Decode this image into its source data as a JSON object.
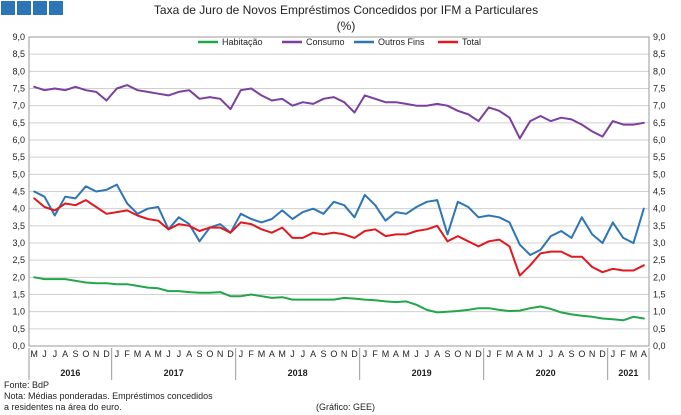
{
  "chart_data": {
    "type": "line",
    "title": "Taxa de Juro de Novos Empréstimos Concedidos por IFM a Particulares",
    "subtitle": "(%)",
    "xlabel": "",
    "ylabel": "",
    "ylim": [
      0,
      9
    ],
    "yticks": [
      "0,0",
      "0,5",
      "1,0",
      "1,5",
      "2,0",
      "2,5",
      "3,0",
      "3,5",
      "4,0",
      "4,5",
      "5,0",
      "5,5",
      "6,0",
      "6,5",
      "7,0",
      "7,5",
      "8,0",
      "8,5",
      "9,0"
    ],
    "grid": true,
    "legend": "top",
    "month_labels": [
      "M",
      "J",
      "J",
      "A",
      "S",
      "O",
      "N",
      "D",
      "J",
      "F",
      "M",
      "A",
      "M",
      "J",
      "J",
      "A",
      "S",
      "O",
      "N",
      "D",
      "J",
      "F",
      "M",
      "A",
      "M",
      "J",
      "J",
      "A",
      "S",
      "O",
      "N",
      "D",
      "J",
      "F",
      "M",
      "A",
      "M",
      "J",
      "J",
      "A",
      "S",
      "O",
      "N",
      "D",
      "J",
      "F",
      "M",
      "A",
      "M",
      "J",
      "J",
      "A",
      "S",
      "O",
      "N",
      "D",
      "J",
      "F",
      "M",
      "A"
    ],
    "years": [
      {
        "label": "2016",
        "start": 0,
        "end": 8
      },
      {
        "label": "2017",
        "start": 8,
        "end": 20
      },
      {
        "label": "2018",
        "start": 20,
        "end": 32
      },
      {
        "label": "2019",
        "start": 32,
        "end": 44
      },
      {
        "label": "2020",
        "start": 44,
        "end": 56
      },
      {
        "label": "2021",
        "start": 56,
        "end": 60
      }
    ],
    "series": [
      {
        "name": "Habitação",
        "color": "#21a64a",
        "values": [
          2.0,
          1.95,
          1.95,
          1.95,
          1.9,
          1.85,
          1.83,
          1.83,
          1.8,
          1.8,
          1.75,
          1.7,
          1.68,
          1.6,
          1.6,
          1.57,
          1.55,
          1.55,
          1.57,
          1.45,
          1.45,
          1.5,
          1.45,
          1.4,
          1.42,
          1.35,
          1.35,
          1.35,
          1.35,
          1.35,
          1.4,
          1.38,
          1.35,
          1.33,
          1.3,
          1.28,
          1.3,
          1.2,
          1.05,
          0.98,
          1.0,
          1.02,
          1.05,
          1.1,
          1.1,
          1.05,
          1.02,
          1.03,
          1.1,
          1.15,
          1.08,
          0.98,
          0.92,
          0.88,
          0.85,
          0.8,
          0.78,
          0.75,
          0.85,
          0.8
        ]
      },
      {
        "name": "Consumo",
        "color": "#7a3fa0",
        "values": [
          7.55,
          7.45,
          7.5,
          7.45,
          7.55,
          7.45,
          7.4,
          7.15,
          7.5,
          7.6,
          7.45,
          7.4,
          7.35,
          7.3,
          7.4,
          7.45,
          7.2,
          7.25,
          7.2,
          6.9,
          7.45,
          7.5,
          7.3,
          7.15,
          7.2,
          7.0,
          7.1,
          7.05,
          7.2,
          7.25,
          7.1,
          6.8,
          7.3,
          7.2,
          7.1,
          7.1,
          7.05,
          7.0,
          7.0,
          7.05,
          7.0,
          6.85,
          6.75,
          6.55,
          6.95,
          6.85,
          6.65,
          6.05,
          6.55,
          6.7,
          6.55,
          6.65,
          6.6,
          6.45,
          6.25,
          6.1,
          6.55,
          6.45,
          6.45,
          6.5
        ]
      },
      {
        "name": "Outros Fins",
        "color": "#2e75b6",
        "values": [
          4.5,
          4.35,
          3.8,
          4.35,
          4.3,
          4.65,
          4.5,
          4.55,
          4.7,
          4.15,
          3.85,
          4.0,
          4.05,
          3.4,
          3.75,
          3.55,
          3.05,
          3.45,
          3.55,
          3.3,
          3.85,
          3.7,
          3.6,
          3.7,
          3.95,
          3.7,
          3.9,
          4.0,
          3.85,
          4.2,
          4.1,
          3.75,
          4.4,
          4.1,
          3.65,
          3.9,
          3.85,
          4.05,
          4.2,
          4.25,
          3.25,
          4.2,
          4.05,
          3.75,
          3.8,
          3.75,
          3.6,
          2.95,
          2.65,
          2.8,
          3.2,
          3.35,
          3.15,
          3.75,
          3.25,
          3.0,
          3.6,
          3.15,
          3.0,
          4.0
        ]
      },
      {
        "name": "Total",
        "color": "#e0191f",
        "values": [
          4.3,
          4.05,
          3.95,
          4.15,
          4.1,
          4.25,
          4.05,
          3.85,
          3.9,
          3.95,
          3.8,
          3.7,
          3.65,
          3.4,
          3.55,
          3.5,
          3.35,
          3.45,
          3.45,
          3.3,
          3.6,
          3.55,
          3.4,
          3.3,
          3.45,
          3.15,
          3.15,
          3.3,
          3.25,
          3.3,
          3.25,
          3.15,
          3.35,
          3.4,
          3.2,
          3.25,
          3.25,
          3.35,
          3.4,
          3.5,
          3.05,
          3.2,
          3.05,
          2.9,
          3.05,
          3.1,
          2.9,
          2.05,
          2.35,
          2.7,
          2.75,
          2.75,
          2.6,
          2.6,
          2.3,
          2.15,
          2.25,
          2.2,
          2.2,
          2.35
        ]
      }
    ],
    "notes": [
      "Fonte: BdP",
      "Nota: Médias ponderadas. Empréstimos concedidos",
      "a residentes na área do euro."
    ],
    "credit": "(Gráfico: GEE)"
  }
}
